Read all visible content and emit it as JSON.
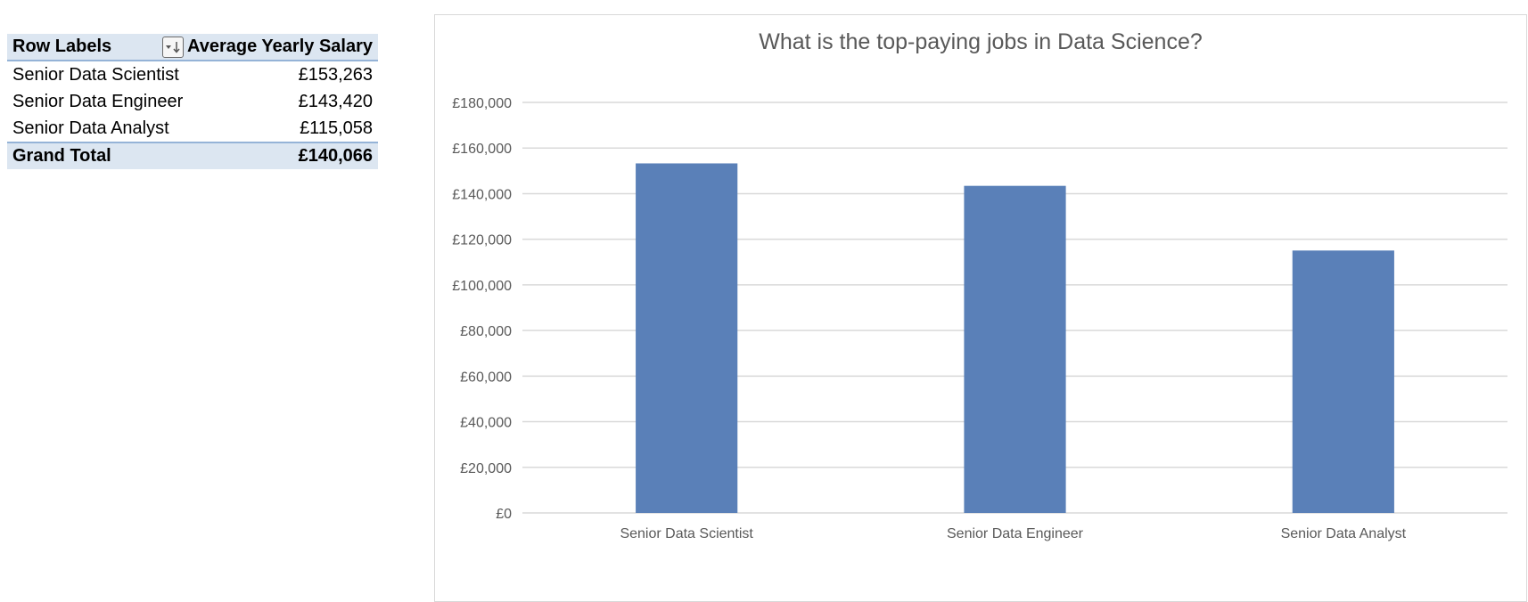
{
  "pivot": {
    "header": {
      "row_labels": "Row Labels",
      "value_header": "Average Yearly Salary"
    },
    "rows": [
      {
        "label": "Senior Data Scientist",
        "value": "£153,263"
      },
      {
        "label": "Senior Data Engineer",
        "value": "£143,420"
      },
      {
        "label": "Senior Data Analyst",
        "value": "£115,058"
      }
    ],
    "total": {
      "label": "Grand Total",
      "value": "£140,066"
    },
    "filter_icon": "sort-filter-icon"
  },
  "chart_data": {
    "type": "bar",
    "title": "What is the top-paying jobs in Data Science?",
    "categories": [
      "Senior Data Scientist",
      "Senior Data Engineer",
      "Senior Data Analyst"
    ],
    "values": [
      153263,
      143420,
      115058
    ],
    "xlabel": "",
    "ylabel": "",
    "ylim": [
      0,
      180000
    ],
    "yticks": [
      0,
      20000,
      40000,
      60000,
      80000,
      100000,
      120000,
      140000,
      160000,
      180000
    ],
    "ytick_labels": [
      "£0",
      "£20,000",
      "£40,000",
      "£60,000",
      "£80,000",
      "£100,000",
      "£120,000",
      "£140,000",
      "£160,000",
      "£180,000"
    ],
    "grid": true,
    "legend": "none",
    "bar_color": "#5a80b8",
    "grid_color": "#d9d9d9"
  }
}
